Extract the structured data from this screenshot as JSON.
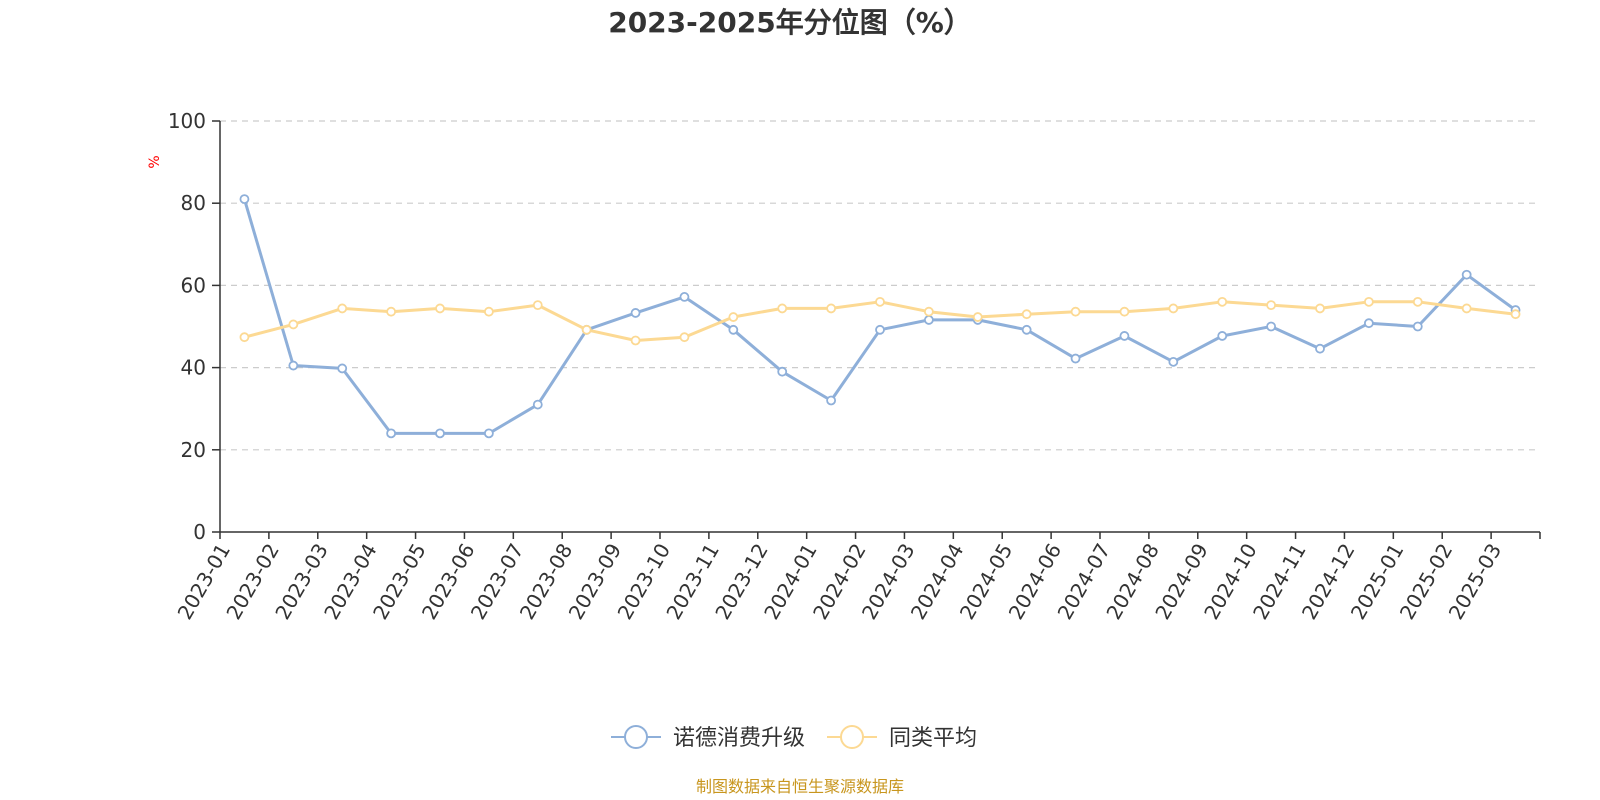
{
  "chart_data": {
    "type": "line",
    "title": "2023-2025年分位图（%）",
    "ylabel": "%",
    "xlabel": "",
    "ylim": [
      0,
      100
    ],
    "yticks": [
      0,
      20,
      40,
      60,
      80,
      100
    ],
    "grid": true,
    "legend_position": "bottom",
    "categories": [
      "2023-01",
      "2023-02",
      "2023-03",
      "2023-04",
      "2023-05",
      "2023-06",
      "2023-07",
      "2023-08",
      "2023-09",
      "2023-10",
      "2023-11",
      "2023-12",
      "2024-01",
      "2024-02",
      "2024-03",
      "2024-04",
      "2024-05",
      "2024-06",
      "2024-07",
      "2024-08",
      "2024-09",
      "2024-10",
      "2024-11",
      "2024-12",
      "2025-01",
      "2025-02",
      "2025-03"
    ],
    "series": [
      {
        "name": "诺德消费升级",
        "color": "#8eafd9",
        "values": [
          81,
          40.5,
          39.8,
          24,
          24,
          24,
          31,
          49.2,
          53.3,
          57.2,
          49.2,
          39,
          32,
          49.2,
          51.6,
          51.6,
          49.2,
          42.2,
          47.7,
          41.4,
          47.7,
          50.0,
          44.6,
          50.8,
          50.0,
          62.6,
          54
        ]
      },
      {
        "name": "同类平均",
        "color": "#fcd993",
        "values": [
          47.4,
          50.5,
          54.4,
          53.6,
          54.4,
          53.6,
          55.2,
          49.2,
          46.6,
          47.4,
          52.3,
          54.4,
          54.4,
          56.0,
          53.6,
          52.3,
          53.0,
          53.6,
          53.6,
          54.4,
          56.0,
          55.2,
          54.4,
          56.0,
          56.0,
          54.4,
          53.0
        ]
      }
    ]
  },
  "footer": {
    "source": "制图数据来自恒生聚源数据库",
    "source_color": "#c8961e"
  },
  "colors": {
    "axis": "#333333",
    "grid": "#cccccc",
    "unit": "#ff0000"
  }
}
